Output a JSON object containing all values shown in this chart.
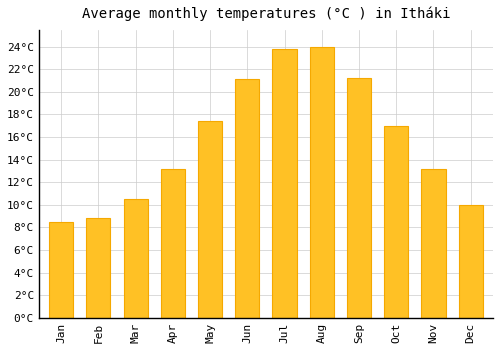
{
  "title": "Average monthly temperatures (°C ) in Itháki",
  "months": [
    "Jan",
    "Feb",
    "Mar",
    "Apr",
    "May",
    "Jun",
    "Jul",
    "Aug",
    "Sep",
    "Oct",
    "Nov",
    "Dec"
  ],
  "values": [
    8.5,
    8.8,
    10.5,
    13.2,
    17.4,
    21.1,
    23.8,
    24.0,
    21.2,
    17.0,
    13.2,
    10.0
  ],
  "bar_color": "#FFC125",
  "bar_edge_color": "#F5A800",
  "background_color": "#FFFFFF",
  "plot_bg_color": "#FFFFFF",
  "grid_color": "#CCCCCC",
  "ytick_step": 2,
  "ylim": [
    0,
    25.5
  ],
  "title_fontsize": 10,
  "tick_fontsize": 8,
  "font_family": "monospace"
}
